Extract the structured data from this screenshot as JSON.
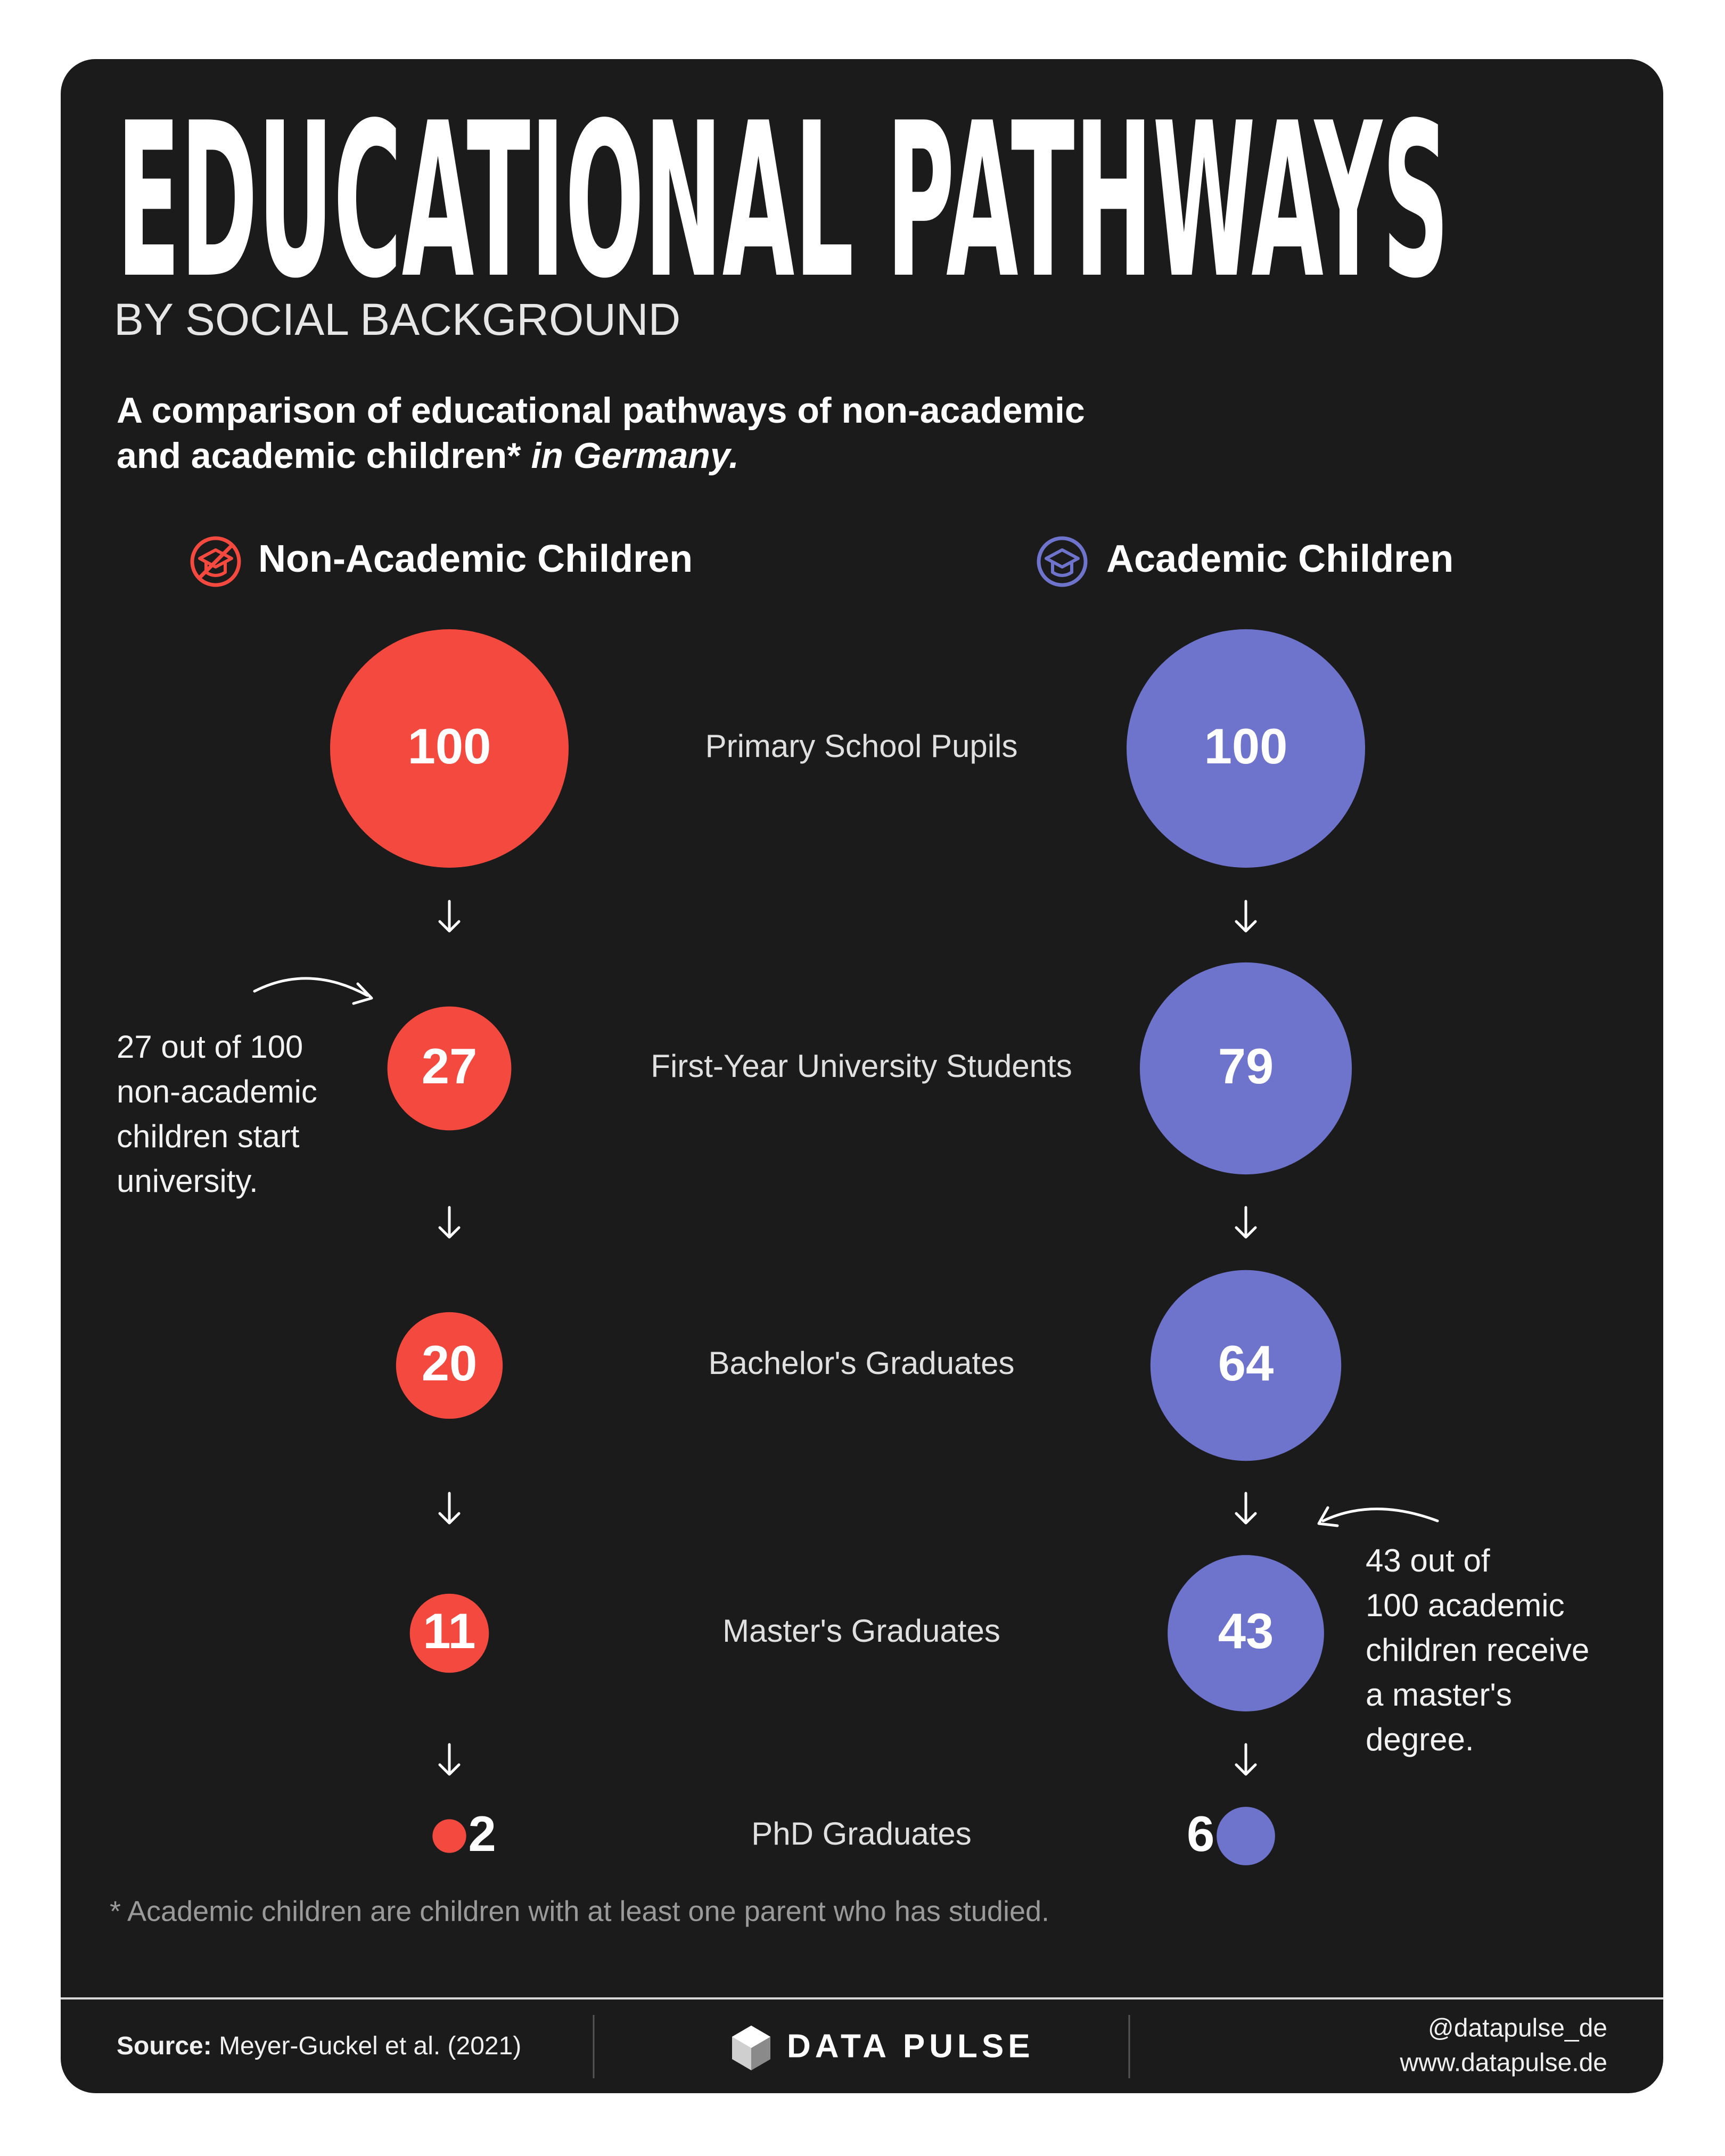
{
  "chart_data": {
    "type": "proportional-circles",
    "title": "EDUCATIONAL PATHWAYS",
    "subtitle": "BY SOCIAL BACKGROUND",
    "description_lines": [
      "A comparison of educational pathways of non-academic",
      "and academic children*"
    ],
    "description_emphasis": "in Germany.",
    "categories": [
      "Primary School Pupils",
      "First-Year University Students",
      "Bachelor's Graduates",
      "Master's Graduates",
      "PhD Graduates"
    ],
    "series": [
      {
        "name": "Non-Academic Children",
        "color": "#f4493f",
        "values": [
          100,
          27,
          20,
          11,
          2
        ]
      },
      {
        "name": "Academic Children",
        "color": "#6e74cc",
        "values": [
          100,
          79,
          64,
          43,
          6
        ]
      }
    ],
    "annotations": [
      {
        "lines": [
          "27 out of 100",
          "non-academic",
          "children start",
          "university."
        ]
      },
      {
        "lines": [
          "43 out of",
          "100 academic",
          "children receive",
          "a master's",
          "degree."
        ]
      }
    ],
    "footnote": "* Academic children are children with at least one parent who has studied.",
    "source_label": "Source:",
    "source": "Meyer-Guckel et al. (2021)",
    "brand": "DATA PULSE",
    "handle": "@datapulse_de",
    "website": "www.datapulse.de"
  }
}
